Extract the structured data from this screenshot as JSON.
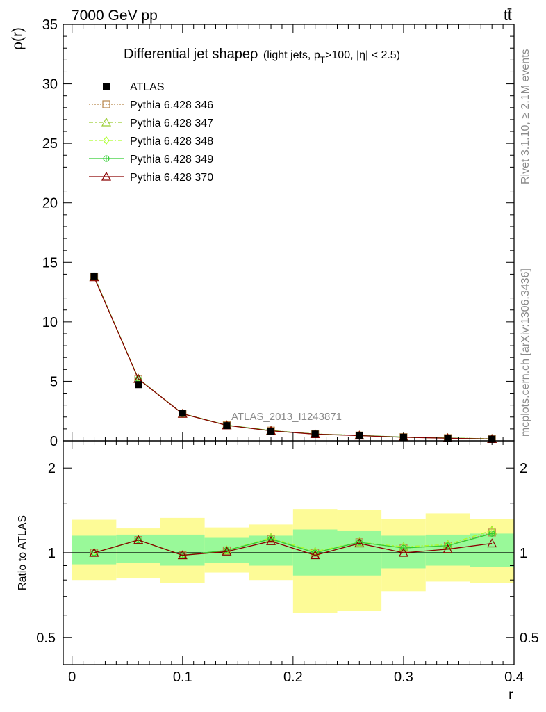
{
  "header": {
    "energy_label": "7000 GeV pp",
    "process_label": "tt̄",
    "side_label_top": "Rivet 3.1.10, ≥ 2.1M events",
    "side_label_bottom": "mcplots.cern.ch [arXiv:1306.3436]"
  },
  "plot": {
    "title_main": "Differential jet shapeρ",
    "title_sub": "(light jets, p",
    "title_sub_index": "T",
    "title_sub_rest": ">100, |η| < 2.5)",
    "analysis_watermark": "ATLAS_2013_I1243871"
  },
  "chart_data": [
    {
      "type": "line",
      "panel": "main",
      "ylabel": "ρ(r)",
      "xlim": [
        -0.008,
        0.4
      ],
      "ylim": [
        0,
        35
      ],
      "y_ticks": [
        0,
        5,
        10,
        15,
        20,
        25,
        30,
        35
      ],
      "y_tick_labels": [
        "0",
        "5",
        "10",
        "15",
        "20",
        "25",
        "30",
        "35"
      ],
      "x": [
        0.02,
        0.06,
        0.1,
        0.14,
        0.18,
        0.22,
        0.26,
        0.3,
        0.34,
        0.38
      ],
      "series": [
        {
          "name": "ATLAS",
          "color": "#000000",
          "marker": "filled-square",
          "line": "none",
          "values": [
            13.85,
            4.72,
            2.33,
            1.28,
            0.78,
            0.57,
            0.41,
            0.3,
            0.22,
            0.14
          ]
        },
        {
          "name": "Pythia 6.428 346",
          "color": "#b8864b",
          "marker": "open-square",
          "line": "dotted",
          "values": [
            13.8,
            5.2,
            2.28,
            1.32,
            0.86,
            0.57,
            0.45,
            0.31,
            0.23,
            0.17
          ]
        },
        {
          "name": "Pythia 6.428 347",
          "color": "#9acd32",
          "marker": "open-triangle",
          "line": "dash-dot",
          "values": [
            13.8,
            5.22,
            2.28,
            1.32,
            0.86,
            0.57,
            0.45,
            0.31,
            0.23,
            0.17
          ]
        },
        {
          "name": "Pythia 6.428 348",
          "color": "#adff2f",
          "marker": "open-diamond",
          "line": "dash-dot",
          "values": [
            13.8,
            5.22,
            2.28,
            1.32,
            0.86,
            0.57,
            0.45,
            0.31,
            0.23,
            0.17
          ]
        },
        {
          "name": "Pythia 6.428 349",
          "color": "#32cd32",
          "marker": "open-circle-cross",
          "line": "solid",
          "values": [
            13.8,
            5.2,
            2.28,
            1.31,
            0.85,
            0.57,
            0.45,
            0.31,
            0.23,
            0.16
          ]
        },
        {
          "name": "Pythia 6.428 370",
          "color": "#8b0000",
          "marker": "open-triangle",
          "line": "solid",
          "values": [
            13.75,
            5.2,
            2.27,
            1.3,
            0.84,
            0.56,
            0.44,
            0.3,
            0.22,
            0.15
          ]
        }
      ],
      "legend_position": "top-left"
    },
    {
      "type": "line",
      "panel": "ratio",
      "xlabel": "r",
      "ylabel": "Ratio to ATLAS",
      "xlim": [
        -0.008,
        0.4
      ],
      "ylim": [
        0.4,
        2.5
      ],
      "log_y": true,
      "y_ticks": [
        0.5,
        1,
        2
      ],
      "y_tick_labels": [
        "0.5",
        "1",
        "2"
      ],
      "x_ticks": [
        0,
        0.1,
        0.2,
        0.3,
        0.4
      ],
      "x_tick_labels": [
        "0",
        "0.1",
        "0.2",
        "0.3",
        "0.4"
      ],
      "bin_edges": [
        0,
        0.04,
        0.08,
        0.12,
        0.16,
        0.2,
        0.24,
        0.28,
        0.32,
        0.36,
        0.4
      ],
      "band_inner": {
        "color": "#99f999",
        "low": [
          0.91,
          0.92,
          0.9,
          0.92,
          0.9,
          0.83,
          0.83,
          0.88,
          0.9,
          0.89
        ],
        "high": [
          1.15,
          1.16,
          1.16,
          1.13,
          1.15,
          1.21,
          1.2,
          1.15,
          1.16,
          1.17
        ]
      },
      "band_outer": {
        "color": "#fdfb97",
        "low": [
          0.8,
          0.81,
          0.78,
          0.85,
          0.8,
          0.61,
          0.62,
          0.73,
          0.79,
          0.78
        ],
        "high": [
          1.31,
          1.22,
          1.33,
          1.23,
          1.26,
          1.43,
          1.42,
          1.32,
          1.38,
          1.32
        ]
      },
      "x": [
        0.02,
        0.06,
        0.1,
        0.14,
        0.18,
        0.22,
        0.26,
        0.3,
        0.34,
        0.38
      ],
      "series": [
        {
          "name": "Pythia 6.428 346",
          "color": "#b8864b",
          "line": "dotted",
          "values": [
            1.0,
            1.11,
            0.98,
            1.02,
            1.12,
            1.0,
            1.09,
            1.04,
            1.06,
            1.18
          ]
        },
        {
          "name": "Pythia 6.428 347",
          "color": "#9acd32",
          "line": "dash-dot",
          "values": [
            1.0,
            1.11,
            0.98,
            1.02,
            1.13,
            1.01,
            1.09,
            1.05,
            1.07,
            1.2
          ]
        },
        {
          "name": "Pythia 6.428 348",
          "color": "#adff2f",
          "line": "dash-dot",
          "values": [
            1.0,
            1.11,
            0.98,
            1.02,
            1.13,
            1.01,
            1.09,
            1.05,
            1.07,
            1.2
          ]
        },
        {
          "name": "Pythia 6.428 349",
          "color": "#32cd32",
          "line": "solid",
          "values": [
            1.0,
            1.11,
            0.98,
            1.02,
            1.12,
            1.0,
            1.09,
            1.04,
            1.06,
            1.17
          ]
        },
        {
          "name": "Pythia 6.428 370",
          "color": "#8b0000",
          "line": "solid",
          "values": [
            1.0,
            1.11,
            0.98,
            1.01,
            1.1,
            0.98,
            1.08,
            1.0,
            1.03,
            1.08
          ]
        }
      ]
    }
  ]
}
